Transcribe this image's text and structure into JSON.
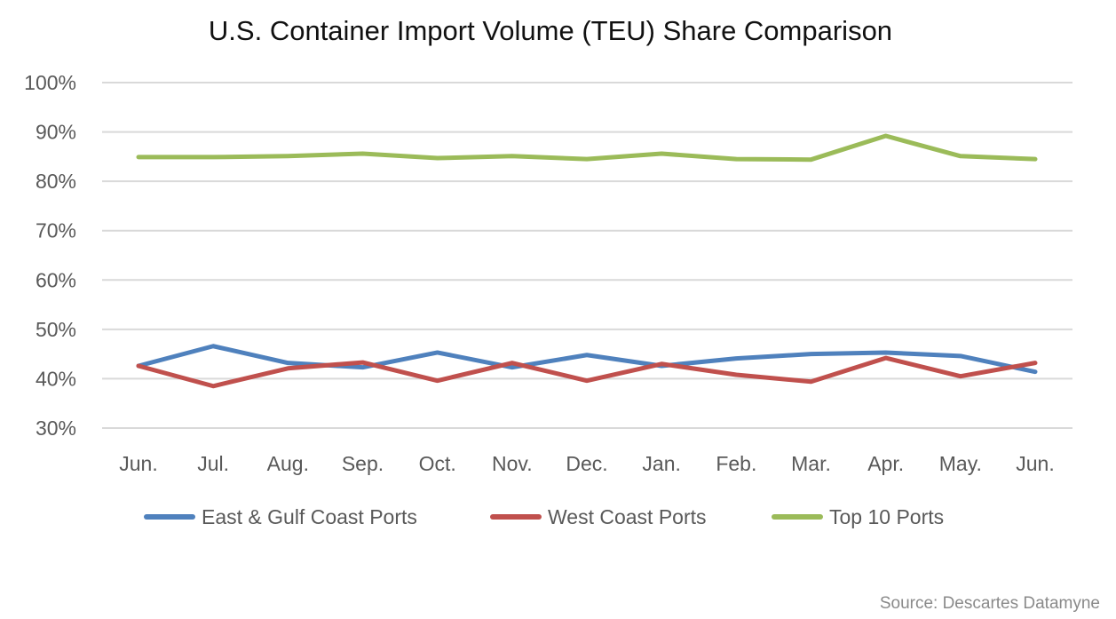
{
  "chart_data": {
    "type": "line",
    "title": "U.S. Container Import Volume (TEU) Share Comparison",
    "xlabel": "",
    "ylabel": "",
    "ylim": [
      30,
      100
    ],
    "yticks": [
      "30%",
      "40%",
      "50%",
      "60%",
      "70%",
      "80%",
      "90%",
      "100%"
    ],
    "ytick_values": [
      30,
      40,
      50,
      60,
      70,
      80,
      90,
      100
    ],
    "grid": true,
    "legend_position": "bottom",
    "categories": [
      "Jun.",
      "Jul.",
      "Aug.",
      "Sep.",
      "Oct.",
      "Nov.",
      "Dec.",
      "Jan.",
      "Feb.",
      "Mar.",
      "Apr.",
      "May.",
      "Jun."
    ],
    "series": [
      {
        "name": "East & Gulf Coast Ports",
        "color": "#4f81bd",
        "values": [
          42.6,
          46.6,
          43.2,
          42.3,
          45.3,
          42.3,
          44.8,
          42.6,
          44.1,
          45.0,
          45.3,
          44.6,
          41.4
        ]
      },
      {
        "name": "West Coast Ports",
        "color": "#c0504d",
        "values": [
          42.6,
          38.5,
          42.1,
          43.3,
          39.6,
          43.2,
          39.6,
          43.0,
          40.8,
          39.4,
          44.2,
          40.5,
          43.2
        ]
      },
      {
        "name": "Top 10 Ports",
        "color": "#9bbb59",
        "values": [
          84.9,
          84.9,
          85.1,
          85.6,
          84.7,
          85.1,
          84.5,
          85.6,
          84.5,
          84.4,
          89.2,
          85.1,
          84.5
        ]
      }
    ]
  },
  "source": "Source: Descartes Datamyne"
}
